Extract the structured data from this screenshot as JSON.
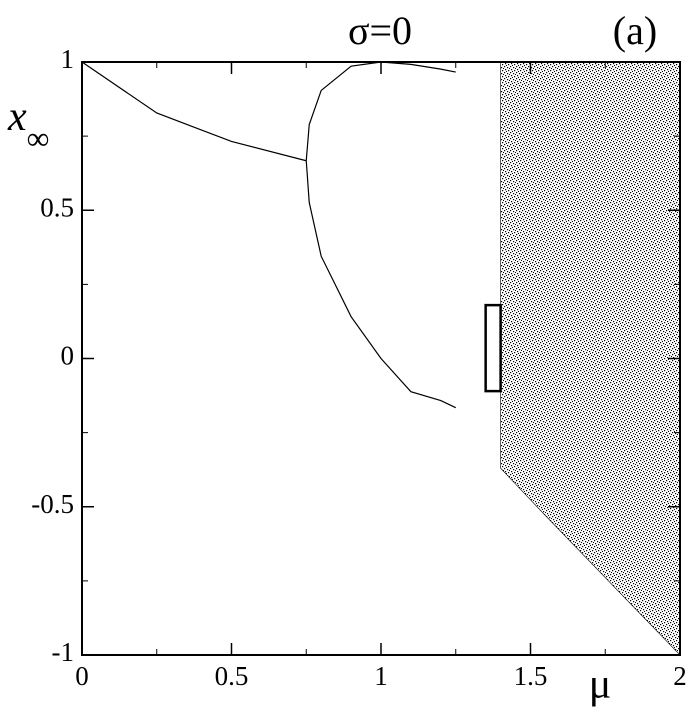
{
  "chart_data": {
    "type": "line",
    "title": "σ=0",
    "panel_label": "(a)",
    "xlabel": "μ",
    "ylabel": [
      "x",
      "∞"
    ],
    "xlim": [
      0,
      2
    ],
    "ylim": [
      -1,
      1
    ],
    "xticks": [
      0,
      0.5,
      1,
      1.5,
      2
    ],
    "yticks": [
      -1,
      -0.5,
      0,
      0.5,
      1
    ],
    "xminorticks": [
      0.25,
      0.75,
      1.25,
      1.75
    ],
    "yminorticks": [
      -0.75,
      -0.25,
      0.25,
      0.75
    ],
    "series": [
      {
        "color": "#000000",
        "x": [
          0,
          0.25,
          0.5,
          0.75
        ],
        "values": [
          1,
          0.828,
          0.732,
          0.667
        ]
      },
      {
        "color": "#000000",
        "x": [
          0.75,
          0.76,
          0.8,
          0.9,
          1.0,
          1.1,
          1.2,
          1.25
        ],
        "values": [
          0.667,
          0.789,
          0.904,
          0.986,
          1,
          0.992,
          0.976,
          0.966
        ]
      },
      {
        "color": "#000000",
        "x": [
          0.75,
          0.76,
          0.8,
          0.9,
          1.0,
          1.1,
          1.2,
          1.25
        ],
        "values": [
          0.667,
          0.526,
          0.345,
          0.141,
          0,
          -0.112,
          -0.142,
          -0.166
        ]
      },
      {
        "color": "#000000",
        "x": [
          1.4,
          1.55,
          2
        ],
        "values": [
          1,
          1,
          1
        ],
        "lower": [
          -0.37,
          -0.53,
          -1
        ]
      }
    ],
    "inset_box": {
      "xlim": [
        1.35,
        1.4
      ],
      "ylim": [
        -0.11,
        0.18
      ]
    }
  }
}
